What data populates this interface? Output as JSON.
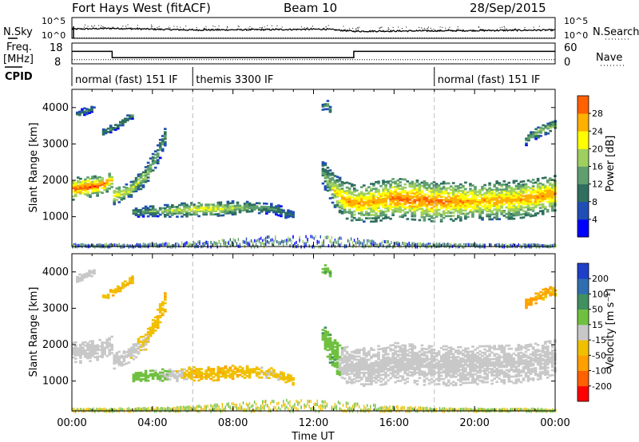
{
  "header": {
    "station": "Fort Hays West (fitACF)",
    "beam": "Beam 10",
    "date": "28/Sep/2015"
  },
  "side_labels": {
    "nsky": "N.Sky",
    "nsearch": "N.Search",
    "freq": "Freq.",
    "freq_unit": "[MHz]",
    "nave": "Nave",
    "cpid": "CPID",
    "nsky_ticks": [
      "10^5",
      "10^0"
    ],
    "nsearch_ticks": [
      "10^5",
      "10^0"
    ],
    "freq_ticks": [
      "18",
      "8"
    ],
    "nave_ticks": [
      "60",
      "0"
    ]
  },
  "cpid_segments": [
    {
      "label": "normal (fast) 151 IF",
      "start": 0,
      "end": 6
    },
    {
      "label": "themis 3300 IF",
      "start": 6,
      "end": 18
    },
    {
      "label": "normal (fast) 151 IF",
      "start": 18,
      "end": 24
    }
  ],
  "colors": {
    "power": [
      "#0000ff",
      "#1f4fb4",
      "#2f6f5f",
      "#5f9f6f",
      "#9fcf5f",
      "#ffff00",
      "#ffb000",
      "#ff6000",
      "#ff0000"
    ],
    "velocity": [
      "#ff0000",
      "#ff6000",
      "#ffa000",
      "#f0c000",
      "#c8c8c8",
      "#70c040",
      "#409060",
      "#2f6fb0",
      "#1f3fc8"
    ],
    "ground": "#c8c8c8"
  },
  "chart_data": [
    {
      "type": "line",
      "title": "N.Sky / N.Search",
      "x": [
        0,
        2,
        6,
        10,
        12.6,
        14,
        18,
        24
      ],
      "series": [
        {
          "name": "N.Sky",
          "values": [
            2.2,
            2.4,
            2.0,
            2.1,
            2.2,
            1.7,
            1.8,
            2.0
          ]
        },
        {
          "name": "N.Search",
          "values": [
            0,
            0,
            0,
            0,
            0,
            0,
            0,
            0
          ]
        }
      ],
      "xlim": [
        0,
        24
      ]
    },
    {
      "type": "line",
      "title": "Freq. / Nave",
      "series": [
        {
          "name": "Freq. [MHz]",
          "x": [
            0,
            2,
            2,
            14,
            14,
            24
          ],
          "values": [
            14,
            14,
            11,
            11,
            14,
            14
          ],
          "ylim": [
            8,
            18
          ]
        },
        {
          "name": "Nave",
          "x": [
            0,
            24
          ],
          "values": [
            12,
            12
          ],
          "ylim": [
            0,
            60
          ]
        }
      ],
      "xlim": [
        0,
        24
      ]
    },
    {
      "type": "heatmap",
      "ylabel": "Slant Range [km]",
      "colorbar_label": "Power [dB]",
      "colorbar_ticks": [
        "4",
        "8",
        "12",
        "16",
        "20",
        "24",
        "28"
      ],
      "ylim": [
        180,
        4500
      ],
      "yticks": [
        1000,
        2000,
        3000,
        4000
      ],
      "xlim": [
        0,
        24
      ],
      "grid_vlines": [
        6,
        18
      ],
      "bands": [
        {
          "x": [
            0,
            0.7,
            1.4,
            2.0,
            2.0,
            2.8,
            3.6,
            4.2,
            4.6
          ],
          "center": [
            1750,
            1800,
            1850,
            2000,
            1550,
            1700,
            2100,
            2700,
            3200
          ],
          "half_width": [
            300,
            280,
            270,
            220,
            230,
            200,
            250,
            250,
            250
          ],
          "peak": [
            26,
            28,
            27,
            24,
            22,
            18,
            16,
            14,
            12
          ]
        },
        {
          "x": [
            3.0,
            4.0,
            5.0,
            6.0,
            7.0,
            8.0,
            9.0,
            10.0,
            11.0
          ],
          "center": [
            1100,
            1150,
            1150,
            1200,
            1200,
            1230,
            1250,
            1200,
            1000
          ],
          "half_width": [
            120,
            150,
            170,
            200,
            200,
            180,
            160,
            140,
            130
          ],
          "peak": [
            10,
            14,
            18,
            20,
            20,
            18,
            14,
            11,
            8
          ]
        },
        {
          "x": [
            12.4,
            13.0,
            13.5,
            14.0,
            15.0,
            16.0,
            17.0,
            18.0,
            20.0,
            22.0,
            24.0
          ],
          "center": [
            2200,
            1700,
            1450,
            1350,
            1400,
            1500,
            1450,
            1400,
            1420,
            1450,
            1620
          ],
          "half_width": [
            350,
            450,
            500,
            500,
            550,
            550,
            550,
            550,
            520,
            520,
            500
          ],
          "peak": [
            12,
            20,
            24,
            24,
            24,
            26,
            27,
            26,
            24,
            24,
            25
          ]
        },
        {
          "x": [
            22.5,
            23.2,
            24.0
          ],
          "center": [
            3100,
            3350,
            3500
          ],
          "half_width": [
            150,
            150,
            150
          ],
          "peak": [
            12,
            16,
            16
          ]
        },
        {
          "x": [
            0.2,
            0.7,
            1.1
          ],
          "center": [
            3800,
            3900,
            4000
          ],
          "half_width": [
            90,
            90,
            90
          ],
          "peak": [
            8,
            10,
            8
          ]
        },
        {
          "x": [
            1.5,
            2.2,
            3.0
          ],
          "center": [
            3300,
            3500,
            3800
          ],
          "half_width": [
            100,
            100,
            100
          ],
          "peak": [
            10,
            12,
            10
          ]
        },
        {
          "x": [
            12.4,
            12.6,
            12.8
          ],
          "center": [
            4000,
            4100,
            3900
          ],
          "half_width": [
            120,
            120,
            120
          ],
          "peak": [
            10,
            14,
            10
          ]
        }
      ]
    },
    {
      "type": "heatmap",
      "ylabel": "Slant Range [km]",
      "xlabel": "Time UT",
      "colorbar_label": "Velocity [m s⁻¹]",
      "colorbar_ticks": [
        "-200",
        "-100",
        "-50",
        "-15",
        "15",
        "50",
        "100",
        "200"
      ],
      "xticks": [
        "00:00",
        "04:00",
        "08:00",
        "12:00",
        "16:00",
        "20:00",
        "00:00"
      ],
      "x_values": [
        0,
        4,
        8,
        12,
        16,
        20,
        24
      ],
      "ylim": [
        180,
        4500
      ],
      "yticks": [
        1000,
        2000,
        3000,
        4000
      ],
      "xlim": [
        0,
        24
      ],
      "grid_vlines": [
        6,
        18
      ],
      "bands": [
        {
          "x": [
            0,
            0.7,
            1.4,
            2.0,
            2.0,
            2.8,
            3.6,
            4.2,
            4.6
          ],
          "center": [
            1750,
            1800,
            1850,
            2000,
            1550,
            1700,
            2100,
            2700,
            3200
          ],
          "half_width": [
            300,
            280,
            270,
            220,
            230,
            200,
            250,
            250,
            250
          ],
          "velocity": [
            0,
            0,
            0,
            0,
            0,
            0,
            -20,
            -40,
            -40
          ]
        },
        {
          "x": [
            3.0,
            4.0,
            5.0,
            6.0,
            7.0,
            8.0,
            9.0,
            10.0,
            11.0
          ],
          "center": [
            1100,
            1150,
            1150,
            1200,
            1200,
            1230,
            1250,
            1200,
            1000
          ],
          "half_width": [
            120,
            150,
            170,
            200,
            200,
            180,
            160,
            140,
            130
          ],
          "velocity": [
            30,
            30,
            0,
            -40,
            -40,
            -40,
            -30,
            -20,
            -40
          ]
        },
        {
          "x": [
            12.4,
            13.0,
            13.5,
            14.0,
            15.0,
            16.0,
            17.0,
            18.0,
            20.0,
            22.0,
            24.0
          ],
          "center": [
            2200,
            1700,
            1450,
            1350,
            1400,
            1500,
            1450,
            1400,
            1420,
            1450,
            1620
          ],
          "half_width": [
            350,
            450,
            500,
            500,
            550,
            550,
            550,
            550,
            520,
            520,
            500
          ],
          "velocity": [
            40,
            40,
            0,
            0,
            0,
            0,
            0,
            0,
            0,
            0,
            0
          ]
        },
        {
          "x": [
            22.5,
            23.2,
            24.0
          ],
          "center": [
            3100,
            3350,
            3500
          ],
          "half_width": [
            150,
            150,
            150
          ],
          "velocity": [
            -60,
            -50,
            -40
          ]
        },
        {
          "x": [
            0.2,
            0.7,
            1.1
          ],
          "center": [
            3800,
            3900,
            4000
          ],
          "half_width": [
            90,
            90,
            90
          ],
          "velocity": [
            0,
            0,
            0
          ]
        },
        {
          "x": [
            1.5,
            2.2,
            3.0
          ],
          "center": [
            3300,
            3500,
            3800
          ],
          "half_width": [
            100,
            100,
            100
          ],
          "velocity": [
            -40,
            -40,
            -40
          ]
        },
        {
          "x": [
            12.4,
            12.6,
            12.8
          ],
          "center": [
            4000,
            4100,
            3900
          ],
          "half_width": [
            120,
            120,
            120
          ],
          "velocity": [
            40,
            40,
            40
          ]
        }
      ]
    }
  ]
}
